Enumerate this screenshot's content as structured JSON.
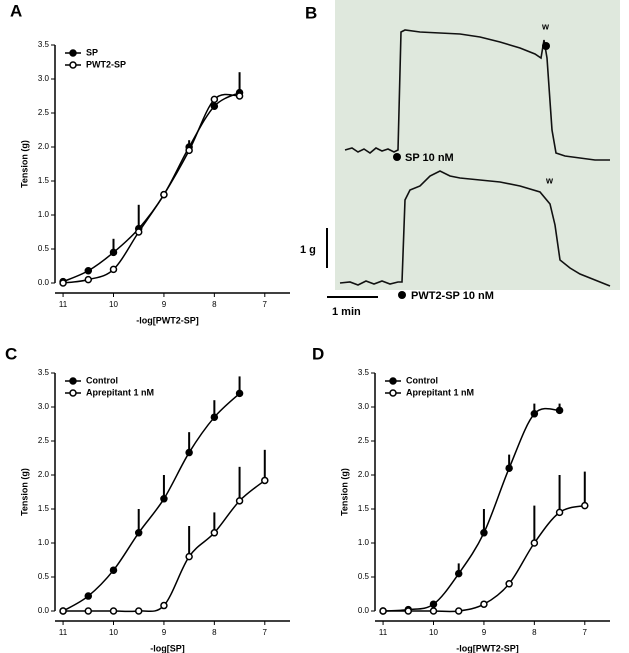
{
  "chart_data": [
    {
      "type": "line",
      "label": "A",
      "xlabel": "-log[PWT2-SP]",
      "ylabel": "Tension (g)",
      "xlim": [
        11.16,
        6.5
      ],
      "xticks": [
        11,
        10,
        9,
        8,
        7
      ],
      "ylim": [
        0,
        3.5
      ],
      "yticks": [
        {
          "value": 0,
          "label": "0.0"
        },
        {
          "value": 0.5,
          "label": "0.5"
        },
        {
          "value": 1,
          "label": "1.0"
        },
        {
          "value": 1.5,
          "label": "1.5"
        },
        {
          "value": 2,
          "label": "2.0"
        },
        {
          "value": 2.5,
          "label": "2.5"
        },
        {
          "value": 3,
          "label": "3.0"
        },
        {
          "value": 3.5,
          "label": "3.5"
        }
      ],
      "series": [
        {
          "name": "SP",
          "color": "#000000",
          "marker": "filled",
          "x": [
            11,
            10.5,
            10,
            9.5,
            9,
            8.5,
            8,
            7.5
          ],
          "values": [
            0.02,
            0.18,
            0.45,
            0.8,
            1.3,
            2.0,
            2.6,
            2.8
          ],
          "errors": [
            null,
            null,
            0.2,
            0.35,
            null,
            0.1,
            0.15,
            0.3
          ]
        },
        {
          "name": "PWT2-SP",
          "color": "#000000",
          "marker": "open",
          "x": [
            11,
            10.5,
            10,
            9.5,
            9,
            8.5,
            8,
            7.5
          ],
          "values": [
            0.0,
            0.05,
            0.2,
            0.75,
            1.3,
            1.95,
            2.7,
            2.75
          ],
          "errors": [
            null,
            null,
            null,
            null,
            null,
            null,
            null,
            null
          ]
        }
      ]
    },
    {
      "type": "line",
      "label": "C",
      "xlabel": "-log[SP]",
      "ylabel": "Tension (g)",
      "xlim": [
        11.16,
        6.5
      ],
      "xticks": [
        11,
        10,
        9,
        8,
        7
      ],
      "ylim": [
        0,
        3.5
      ],
      "yticks": [
        {
          "value": 0,
          "label": "0.0"
        },
        {
          "value": 0.5,
          "label": "0.5"
        },
        {
          "value": 1,
          "label": "1.0"
        },
        {
          "value": 1.5,
          "label": "1.5"
        },
        {
          "value": 2,
          "label": "2.0"
        },
        {
          "value": 2.5,
          "label": "2.5"
        },
        {
          "value": 3,
          "label": "3.0"
        },
        {
          "value": 3.5,
          "label": "3.5"
        }
      ],
      "series": [
        {
          "name": "Control",
          "color": "#000000",
          "marker": "filled",
          "x": [
            11,
            10.5,
            10,
            9.5,
            9,
            8.5,
            8,
            7.5
          ],
          "values": [
            0.0,
            0.22,
            0.6,
            1.15,
            1.65,
            2.33,
            2.85,
            3.2
          ],
          "errors": [
            null,
            null,
            0.05,
            0.35,
            0.35,
            0.3,
            0.25,
            0.25
          ]
        },
        {
          "name": "Aprepitant 1 nM",
          "color": "#000000",
          "marker": "open",
          "x": [
            11,
            10.5,
            10,
            9.5,
            9,
            8.5,
            8,
            7.5,
            7
          ],
          "values": [
            0.0,
            0.0,
            0.0,
            0.0,
            0.08,
            0.8,
            1.15,
            1.62,
            1.92
          ],
          "errors": [
            null,
            null,
            null,
            null,
            null,
            0.45,
            0.3,
            0.5,
            0.45
          ]
        }
      ]
    },
    {
      "type": "line",
      "label": "D",
      "xlabel": "-log[PWT2-SP]",
      "ylabel": "Tension (g)",
      "xlim": [
        11.16,
        6.5
      ],
      "xticks": [
        11,
        10,
        9,
        8,
        7
      ],
      "ylim": [
        0,
        3.5
      ],
      "yticks": [
        {
          "value": 0,
          "label": "0.0"
        },
        {
          "value": 0.5,
          "label": "0.5"
        },
        {
          "value": 1,
          "label": "1.0"
        },
        {
          "value": 1.5,
          "label": "1.5"
        },
        {
          "value": 2,
          "label": "2.0"
        },
        {
          "value": 2.5,
          "label": "2.5"
        },
        {
          "value": 3,
          "label": "3.0"
        },
        {
          "value": 3.5,
          "label": "3.5"
        }
      ],
      "series": [
        {
          "name": "Control",
          "color": "#000000",
          "marker": "filled",
          "x": [
            11,
            10.5,
            10,
            9.5,
            9,
            8.5,
            8,
            7.5
          ],
          "values": [
            0.0,
            0.02,
            0.1,
            0.55,
            1.15,
            2.1,
            2.9,
            2.95
          ],
          "errors": [
            null,
            null,
            null,
            0.15,
            0.35,
            0.2,
            0.15,
            0.1
          ]
        },
        {
          "name": "Aprepitant 1 nM",
          "color": "#000000",
          "marker": "open",
          "x": [
            11,
            10.5,
            10,
            9.5,
            9,
            8.5,
            8,
            7.5,
            7
          ],
          "values": [
            0.0,
            0.0,
            0.0,
            0.0,
            0.1,
            0.4,
            1.0,
            1.45,
            1.55
          ],
          "errors": [
            null,
            null,
            null,
            null,
            null,
            null,
            0.55,
            0.55,
            0.5
          ]
        }
      ]
    }
  ],
  "recording": {
    "label": "B",
    "first_drug": "SP 10 nM",
    "second_drug": "PWT2-SP 10 nM",
    "washout_marks": [
      "w",
      "w"
    ],
    "force_scale": "1 g",
    "time_scale": "1 min"
  }
}
